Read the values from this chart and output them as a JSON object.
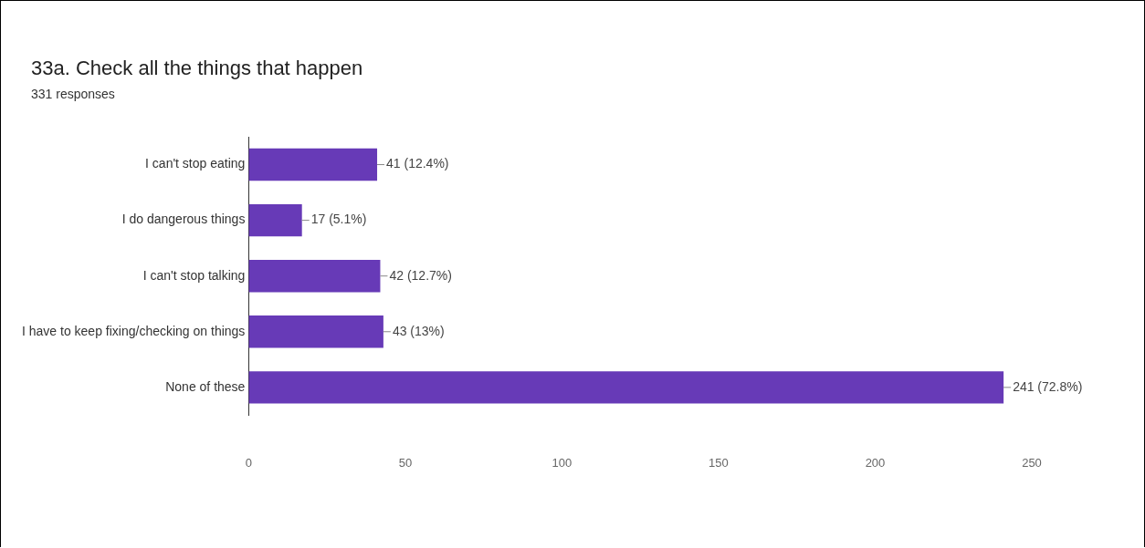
{
  "chart_data": {
    "type": "bar",
    "orientation": "horizontal",
    "title": "33a. Check all the things that happen",
    "subtitle": "331 responses",
    "categories": [
      "I can't stop eating",
      "I do dangerous things",
      "I can't stop talking",
      "I have to keep fixing/checking on things",
      "None of these"
    ],
    "values": [
      41,
      17,
      42,
      43,
      241
    ],
    "value_labels": [
      "41 (12.4%)",
      "17 (5.1%)",
      "42 (12.7%)",
      "43 (13%)",
      "241 (72.8%)"
    ],
    "color": "#673ab7",
    "xlim": [
      0,
      250
    ],
    "xticks": [
      0,
      50,
      100,
      150,
      200,
      250
    ],
    "grid": false,
    "legend": false
  }
}
